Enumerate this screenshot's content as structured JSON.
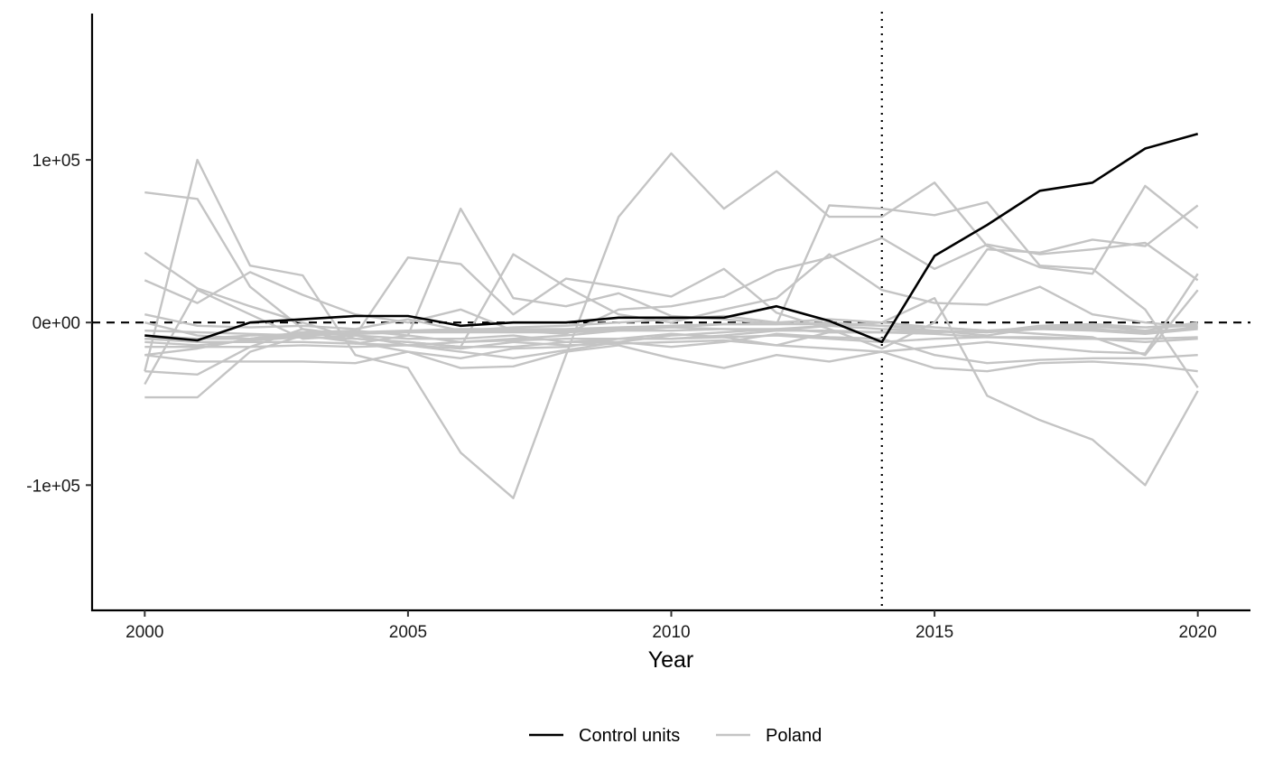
{
  "chart_data": {
    "type": "line",
    "title": "",
    "xlabel": "Year",
    "ylabel": "",
    "xlim": [
      1999,
      2021
    ],
    "ylim": [
      -177000,
      190000
    ],
    "x_ticks": [
      2000,
      2005,
      2010,
      2015,
      2020
    ],
    "x_tick_labels": [
      "2000",
      "2005",
      "2010",
      "2015",
      "2020"
    ],
    "y_ticks": [
      -100000,
      0,
      100000
    ],
    "y_tick_labels": [
      "-1e+05",
      "0e+00",
      "1e+05"
    ],
    "reference_lines": [
      {
        "orientation": "horizontal",
        "value": 0,
        "style": "dashed"
      },
      {
        "orientation": "vertical",
        "value": 2014,
        "style": "dotted"
      }
    ],
    "grid": false,
    "legend_position": "bottom",
    "x": [
      2000,
      2001,
      2002,
      2003,
      2004,
      2005,
      2006,
      2007,
      2008,
      2009,
      2010,
      2011,
      2012,
      2013,
      2014,
      2015,
      2016,
      2017,
      2018,
      2019,
      2020
    ],
    "series": [
      {
        "name": "Control units",
        "color": "#000000",
        "values": [
          -8000,
          -11000,
          0,
          2000,
          4000,
          4000,
          -2000,
          0,
          0,
          3000,
          3000,
          3000,
          10000,
          1000,
          -12000,
          41000,
          60000,
          81000,
          86000,
          107000,
          116000
        ]
      },
      {
        "name": "Poland",
        "color": "#c4c4c4",
        "lines": [
          [
            80000,
            76000,
            22000,
            -4000,
            -13000,
            -8000,
            70000,
            15000,
            10000,
            18000,
            4000,
            2000,
            -1000,
            72000,
            70000,
            66000,
            74000,
            35000,
            33000,
            8000,
            -40000
          ],
          [
            -30000,
            100000,
            35000,
            29000,
            -20000,
            -28000,
            -80000,
            -108000,
            -20000,
            65000,
            104000,
            70000,
            93000,
            65000,
            65000,
            86000,
            47000,
            34000,
            30000,
            84000,
            58000
          ],
          [
            -38000,
            20000,
            5000,
            -10000,
            -8000,
            40000,
            36000,
            5000,
            27000,
            22000,
            16000,
            33000,
            6000,
            -4000,
            -16000,
            0,
            45000,
            43000,
            51000,
            47000,
            72000
          ],
          [
            43000,
            21000,
            10000,
            0,
            -10000,
            -12000,
            -15000,
            42000,
            22000,
            5000,
            0,
            8000,
            15000,
            42000,
            20000,
            12000,
            11000,
            22000,
            5000,
            0,
            -3000
          ],
          [
            26000,
            12000,
            31000,
            17000,
            5000,
            0,
            8000,
            -5000,
            -7000,
            8000,
            10000,
            16000,
            32000,
            40000,
            52000,
            33000,
            48000,
            42000,
            45000,
            49000,
            26000
          ],
          [
            5000,
            -2000,
            -3000,
            -2000,
            -4000,
            2000,
            -5000,
            -3000,
            -2000,
            0,
            2000,
            4000,
            0,
            2000,
            0,
            -3000,
            -5000,
            -3000,
            -4000,
            -6000,
            -3000
          ],
          [
            -20000,
            -16000,
            -10000,
            -6000,
            -5000,
            -8000,
            -12000,
            -10000,
            -8000,
            -5000,
            -3000,
            -1000,
            -1000,
            0,
            -2000,
            -5000,
            -6000,
            -4000,
            -5000,
            -7000,
            -4000
          ],
          [
            -12000,
            -14000,
            -11000,
            -9000,
            -10000,
            -12000,
            -15000,
            -15000,
            -12000,
            -12000,
            -8000,
            -6000,
            -4000,
            -2000,
            -4000,
            -5000,
            -8000,
            -3000,
            -2000,
            -5000,
            0
          ],
          [
            -20000,
            -24000,
            -24000,
            -24000,
            -25000,
            -18000,
            -22000,
            -16000,
            -15000,
            -10000,
            -7000,
            -9000,
            -14000,
            -6000,
            -6000,
            -5000,
            -6000,
            -2000,
            -1000,
            -3000,
            -1000
          ],
          [
            -30000,
            -32000,
            -15000,
            -4000,
            -8000,
            -14000,
            -18000,
            -22000,
            -17000,
            -12000,
            -15000,
            -12000,
            -7000,
            -9000,
            -10000,
            -20000,
            -25000,
            -23000,
            -22000,
            -22000,
            -20000
          ],
          [
            -46000,
            -46000,
            -18000,
            -8000,
            -12000,
            -18000,
            -28000,
            -27000,
            -18000,
            -14000,
            -22000,
            -28000,
            -20000,
            -24000,
            -18000,
            -28000,
            -30000,
            -25000,
            -24000,
            -26000,
            -30000
          ],
          [
            0,
            -8000,
            -10000,
            -6000,
            -8000,
            -10000,
            -10000,
            -8000,
            -12000,
            -10000,
            -10000,
            -8000,
            -5000,
            -2000,
            0,
            15000,
            -45000,
            -60000,
            -72000,
            -100000,
            -42000
          ],
          [
            -10000,
            -12000,
            -12000,
            -12000,
            -13000,
            -14000,
            -16000,
            -12000,
            -14000,
            -13000,
            -12000,
            -11000,
            -14000,
            -16000,
            -18000,
            -15000,
            -12000,
            -15000,
            -18000,
            -19000,
            30000
          ],
          [
            -15000,
            -15000,
            -15000,
            -14000,
            -15000,
            -14000,
            -12000,
            -11000,
            -10000,
            -10000,
            -10000,
            -9000,
            -8000,
            -10000,
            -12000,
            -10000,
            -9000,
            -10000,
            -10000,
            -12000,
            -10000
          ],
          [
            -10000,
            -10000,
            -10000,
            -8000,
            -6000,
            -5000,
            -4000,
            -4000,
            -4000,
            -3000,
            -2000,
            -1000,
            -1000,
            -1000,
            -2000,
            -3000,
            -5000,
            -7000,
            -9000,
            -20000,
            20000
          ],
          [
            -8000,
            -10000,
            -8000,
            -7000,
            -7000,
            -6000,
            -6000,
            -6000,
            -6000,
            -5000,
            -5000,
            -4000,
            -4000,
            -6000,
            -6000,
            -7000,
            -9000,
            -9000,
            -10000,
            -10000,
            -9000
          ],
          [
            -5000,
            -6000,
            -7000,
            -8000,
            -7000,
            -6000,
            -5000,
            -5000,
            -5000,
            -4000,
            -3000,
            -4000,
            -5000,
            -5000,
            -6000,
            -6000,
            -5000,
            -4000,
            -3000,
            -3000,
            -2000
          ]
        ]
      }
    ]
  }
}
